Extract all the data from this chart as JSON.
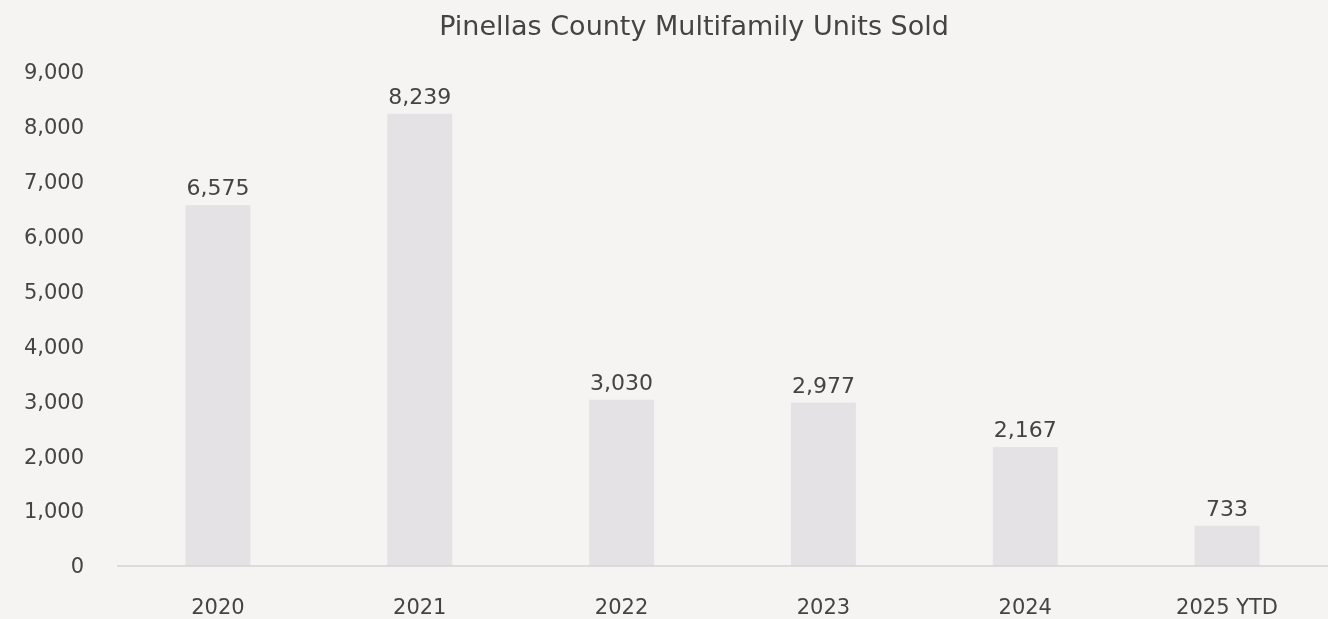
{
  "chart_data": {
    "type": "bar",
    "title": "Pinellas County Multifamily Units Sold",
    "categories": [
      "2020",
      "2021",
      "2022",
      "2023",
      "2024",
      "2025 YTD"
    ],
    "values": [
      6575,
      8239,
      3030,
      2977,
      2167,
      733
    ],
    "value_labels": [
      "6,575",
      "8,239",
      "3,030",
      "2,977",
      "2,167",
      "733"
    ],
    "color": "#e4e2e5",
    "ylim": [
      0,
      9000
    ],
    "yticks": [
      {
        "value": 0,
        "label": "0"
      },
      {
        "value": 1000,
        "label": "1,000"
      },
      {
        "value": 2000,
        "label": "2,000"
      },
      {
        "value": 3000,
        "label": "3,000"
      },
      {
        "value": 4000,
        "label": "4,000"
      },
      {
        "value": 5000,
        "label": "5,000"
      },
      {
        "value": 6000,
        "label": "6,000"
      },
      {
        "value": 7000,
        "label": "7,000"
      },
      {
        "value": 8000,
        "label": "8,000"
      },
      {
        "value": 9000,
        "label": "9,000"
      }
    ],
    "grid": false
  }
}
